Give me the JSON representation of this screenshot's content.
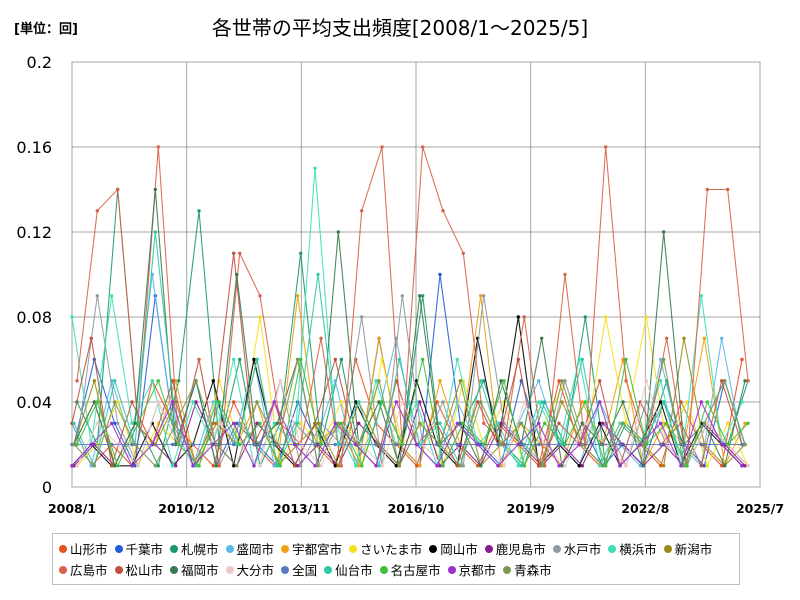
{
  "unit_label": "[単位：回]",
  "chart_data": {
    "type": "line",
    "title": "各世帯の平均支出頻度[2008/1～2025/5]",
    "xlabel": "",
    "ylabel": "",
    "xlim": [
      "2008/1",
      "2025/7"
    ],
    "ylim": [
      0,
      0.2
    ],
    "grid": true,
    "legend_position": "bottom",
    "x_tick_labels": [
      "2008/1",
      "2010/12",
      "2013/11",
      "2016/10",
      "2019/9",
      "2022/8",
      "2025/7"
    ],
    "y_tick_labels": [
      "0",
      "0.04",
      "0.08",
      "0.12",
      "0.16",
      "0.2"
    ],
    "y_ticks": [
      0,
      0.04,
      0.08,
      0.12,
      0.16,
      0.2
    ],
    "series": [
      {
        "name": "山形市",
        "color": "#e8501e",
        "values": [
          0.03,
          0.01,
          0.02,
          0.01,
          0.05,
          0.03,
          0.02,
          0.01,
          0.04,
          0.02,
          0.01,
          0.03,
          0.02,
          0.01,
          0.06,
          0.03,
          0.02,
          0.01,
          0.04,
          0.02,
          0.01,
          0.03,
          0.02,
          0.01,
          0.05,
          0.02,
          0.01,
          0.03,
          0.02,
          0.01,
          0.04,
          0.02,
          0.01,
          0.06
        ]
      },
      {
        "name": "千葉市",
        "color": "#1f5fd6",
        "values": [
          0.02,
          0.06,
          0.03,
          0.01,
          0.09,
          0.02,
          0.05,
          0.01,
          0.03,
          0.02,
          0.01,
          0.04,
          0.02,
          0.03,
          0.01,
          0.07,
          0.02,
          0.01,
          0.1,
          0.03,
          0.02,
          0.01,
          0.05,
          0.02,
          0.01,
          0.03,
          0.01,
          0.02,
          0.01,
          0.04,
          0.02,
          0.01,
          0.05,
          0.02
        ]
      },
      {
        "name": "札幌市",
        "color": "#1a9a6c",
        "values": [
          0.04,
          0.02,
          0.14,
          0.03,
          0.01,
          0.05,
          0.13,
          0.02,
          0.06,
          0.01,
          0.03,
          0.11,
          0.02,
          0.06,
          0.01,
          0.04,
          0.02,
          0.09,
          0.01,
          0.03,
          0.05,
          0.02,
          0.01,
          0.04,
          0.02,
          0.08,
          0.01,
          0.03,
          0.02,
          0.05,
          0.01,
          0.03,
          0.02,
          0.05
        ]
      },
      {
        "name": "盛岡市",
        "color": "#5bb8e8",
        "values": [
          0.03,
          0.01,
          0.05,
          0.02,
          0.1,
          0.03,
          0.01,
          0.04,
          0.02,
          0.06,
          0.01,
          0.03,
          0.02,
          0.05,
          0.01,
          0.03,
          0.07,
          0.02,
          0.01,
          0.04,
          0.02,
          0.01,
          0.03,
          0.05,
          0.02,
          0.01,
          0.04,
          0.02,
          0.01,
          0.06,
          0.02,
          0.01,
          0.07,
          0.02
        ]
      },
      {
        "name": "宇都宮市",
        "color": "#f0a010",
        "values": [
          0.02,
          0.04,
          0.01,
          0.03,
          0.02,
          0.05,
          0.01,
          0.03,
          0.02,
          0.04,
          0.01,
          0.09,
          0.02,
          0.03,
          0.01,
          0.07,
          0.02,
          0.01,
          0.05,
          0.02,
          0.09,
          0.01,
          0.03,
          0.02,
          0.01,
          0.04,
          0.02,
          0.06,
          0.01,
          0.03,
          0.02,
          0.07,
          0.01,
          0.03
        ]
      },
      {
        "name": "さいたま市",
        "color": "#f5e020",
        "values": [
          0.01,
          0.02,
          0.04,
          0.01,
          0.03,
          0.02,
          0.01,
          0.05,
          0.02,
          0.08,
          0.01,
          0.03,
          0.02,
          0.04,
          0.01,
          0.06,
          0.02,
          0.03,
          0.01,
          0.05,
          0.02,
          0.04,
          0.01,
          0.03,
          0.05,
          0.02,
          0.08,
          0.03,
          0.08,
          0.02,
          0.04,
          0.01,
          0.03,
          0.01
        ]
      },
      {
        "name": "岡山市",
        "color": "#000000",
        "values": [
          0.01,
          0.02,
          0.01,
          0.01,
          0.03,
          0.01,
          0.02,
          0.05,
          0.01,
          0.06,
          0.02,
          0.01,
          0.03,
          0.01,
          0.04,
          0.02,
          0.01,
          0.05,
          0.02,
          0.01,
          0.07,
          0.02,
          0.08,
          0.01,
          0.02,
          0.01,
          0.03,
          0.01,
          0.02,
          0.04,
          0.01,
          0.03,
          0.02,
          0.01
        ]
      },
      {
        "name": "鹿児島市",
        "color": "#8a1c8e",
        "values": [
          0.01,
          0.02,
          0.01,
          0.03,
          0.02,
          0.01,
          0.04,
          0.02,
          0.01,
          0.03,
          0.02,
          0.01,
          0.02,
          0.01,
          0.03,
          0.02,
          0.01,
          0.04,
          0.01,
          0.02,
          0.01,
          0.03,
          0.02,
          0.01,
          0.02,
          0.01,
          0.03,
          0.02,
          0.01,
          0.02,
          0.01,
          0.03,
          0.02,
          0.01
        ]
      },
      {
        "name": "水戸市",
        "color": "#909aa0",
        "values": [
          0.02,
          0.09,
          0.03,
          0.01,
          0.04,
          0.02,
          0.06,
          0.01,
          0.03,
          0.02,
          0.05,
          0.01,
          0.03,
          0.02,
          0.08,
          0.01,
          0.09,
          0.02,
          0.04,
          0.01,
          0.09,
          0.03,
          0.02,
          0.01,
          0.05,
          0.02,
          0.03,
          0.01,
          0.04,
          0.02,
          0.01,
          0.03,
          0.02,
          0.01
        ]
      },
      {
        "name": "横浜市",
        "color": "#3de0b8",
        "values": [
          0.08,
          0.02,
          0.09,
          0.03,
          0.05,
          0.01,
          0.04,
          0.02,
          0.06,
          0.01,
          0.03,
          0.02,
          0.15,
          0.03,
          0.01,
          0.05,
          0.02,
          0.04,
          0.01,
          0.06,
          0.02,
          0.03,
          0.01,
          0.04,
          0.02,
          0.06,
          0.01,
          0.03,
          0.02,
          0.05,
          0.01,
          0.09,
          0.02,
          0.04
        ]
      },
      {
        "name": "新潟市",
        "color": "#9a8a1a",
        "values": [
          0.02,
          0.05,
          0.01,
          0.03,
          0.02,
          0.04,
          0.01,
          0.03,
          0.02,
          0.06,
          0.01,
          0.02,
          0.03,
          0.01,
          0.04,
          0.02,
          0.01,
          0.03,
          0.02,
          0.05,
          0.01,
          0.02,
          0.03,
          0.01,
          0.04,
          0.02,
          0.01,
          0.03,
          0.02,
          0.01,
          0.07,
          0.02,
          0.01,
          0.02
        ]
      },
      {
        "name": "広島市",
        "color": "#d9634a",
        "values": [
          0.05,
          0.13,
          0.14,
          0.03,
          0.16,
          0.02,
          0.06,
          0.01,
          0.11,
          0.09,
          0.03,
          0.02,
          0.07,
          0.01,
          0.13,
          0.16,
          0.02,
          0.16,
          0.13,
          0.11,
          0.03,
          0.02,
          0.08,
          0.01,
          0.1,
          0.02,
          0.16,
          0.05,
          0.02,
          0.07,
          0.01,
          0.14,
          0.14,
          0.05
        ]
      },
      {
        "name": "松山市",
        "color": "#c0503c",
        "values": [
          0.03,
          0.07,
          0.01,
          0.04,
          0.02,
          0.05,
          0.01,
          0.03,
          0.11,
          0.02,
          0.04,
          0.01,
          0.03,
          0.06,
          0.02,
          0.01,
          0.05,
          0.02,
          0.03,
          0.01,
          0.04,
          0.02,
          0.06,
          0.01,
          0.03,
          0.02,
          0.05,
          0.01,
          0.04,
          0.02,
          0.03,
          0.01,
          0.05,
          0.02
        ]
      },
      {
        "name": "福岡市",
        "color": "#3a7a50",
        "values": [
          0.02,
          0.04,
          0.01,
          0.03,
          0.14,
          0.02,
          0.05,
          0.01,
          0.1,
          0.02,
          0.03,
          0.06,
          0.01,
          0.12,
          0.02,
          0.04,
          0.01,
          0.09,
          0.02,
          0.03,
          0.01,
          0.05,
          0.02,
          0.07,
          0.01,
          0.03,
          0.02,
          0.04,
          0.01,
          0.12,
          0.02,
          0.03,
          0.01,
          0.05
        ]
      },
      {
        "name": "大分市",
        "color": "#f0c8c8",
        "values": [
          0.01,
          0.03,
          0.02,
          0.01,
          0.04,
          0.02,
          0.01,
          0.03,
          0.02,
          0.01,
          0.05,
          0.02,
          0.01,
          0.03,
          0.02,
          0.01,
          0.04,
          0.02,
          0.01,
          0.03,
          0.02,
          0.01,
          0.04,
          0.02,
          0.01,
          0.03,
          0.02,
          0.01,
          0.05,
          0.02,
          0.01,
          0.03,
          0.02,
          0.01
        ]
      },
      {
        "name": "全国",
        "color": "#5a78c0",
        "values": [
          0.02,
          0.02,
          0.02,
          0.02,
          0.02,
          0.02,
          0.02,
          0.02,
          0.02,
          0.02,
          0.02,
          0.02,
          0.02,
          0.02,
          0.02,
          0.02,
          0.02,
          0.02,
          0.02,
          0.02,
          0.02,
          0.02,
          0.02,
          0.02,
          0.02,
          0.02,
          0.02,
          0.02,
          0.02,
          0.02,
          0.02,
          0.02,
          0.02,
          0.02
        ]
      },
      {
        "name": "仙台市",
        "color": "#30c8a8",
        "values": [
          0.03,
          0.01,
          0.05,
          0.02,
          0.12,
          0.03,
          0.01,
          0.04,
          0.02,
          0.06,
          0.01,
          0.03,
          0.1,
          0.02,
          0.04,
          0.01,
          0.06,
          0.02,
          0.03,
          0.01,
          0.05,
          0.02,
          0.01,
          0.04,
          0.02,
          0.06,
          0.01,
          0.03,
          0.02,
          0.04,
          0.01,
          0.03,
          0.05,
          0.02
        ]
      },
      {
        "name": "名古屋市",
        "color": "#40c040",
        "values": [
          0.02,
          0.04,
          0.01,
          0.03,
          0.05,
          0.02,
          0.01,
          0.04,
          0.02,
          0.03,
          0.01,
          0.06,
          0.02,
          0.03,
          0.01,
          0.04,
          0.02,
          0.06,
          0.01,
          0.03,
          0.02,
          0.05,
          0.01,
          0.03,
          0.02,
          0.04,
          0.01,
          0.06,
          0.02,
          0.03,
          0.01,
          0.04,
          0.02,
          0.03
        ]
      },
      {
        "name": "京都市",
        "color": "#9a30d0",
        "values": [
          0.01,
          0.02,
          0.03,
          0.01,
          0.02,
          0.04,
          0.01,
          0.02,
          0.03,
          0.01,
          0.04,
          0.02,
          0.01,
          0.03,
          0.02,
          0.01,
          0.04,
          0.02,
          0.01,
          0.03,
          0.02,
          0.01,
          0.02,
          0.03,
          0.01,
          0.02,
          0.04,
          0.01,
          0.02,
          0.03,
          0.01,
          0.04,
          0.02,
          0.01
        ]
      },
      {
        "name": "青森市",
        "color": "#7a9a50",
        "values": [
          0.02,
          0.01,
          0.04,
          0.02,
          0.01,
          0.03,
          0.05,
          0.02,
          0.01,
          0.04,
          0.02,
          0.06,
          0.01,
          0.03,
          0.02,
          0.05,
          0.01,
          0.03,
          0.02,
          0.01,
          0.04,
          0.02,
          0.03,
          0.01,
          0.05,
          0.02,
          0.01,
          0.03,
          0.02,
          0.06,
          0.01,
          0.03,
          0.05,
          0.02
        ]
      }
    ]
  }
}
